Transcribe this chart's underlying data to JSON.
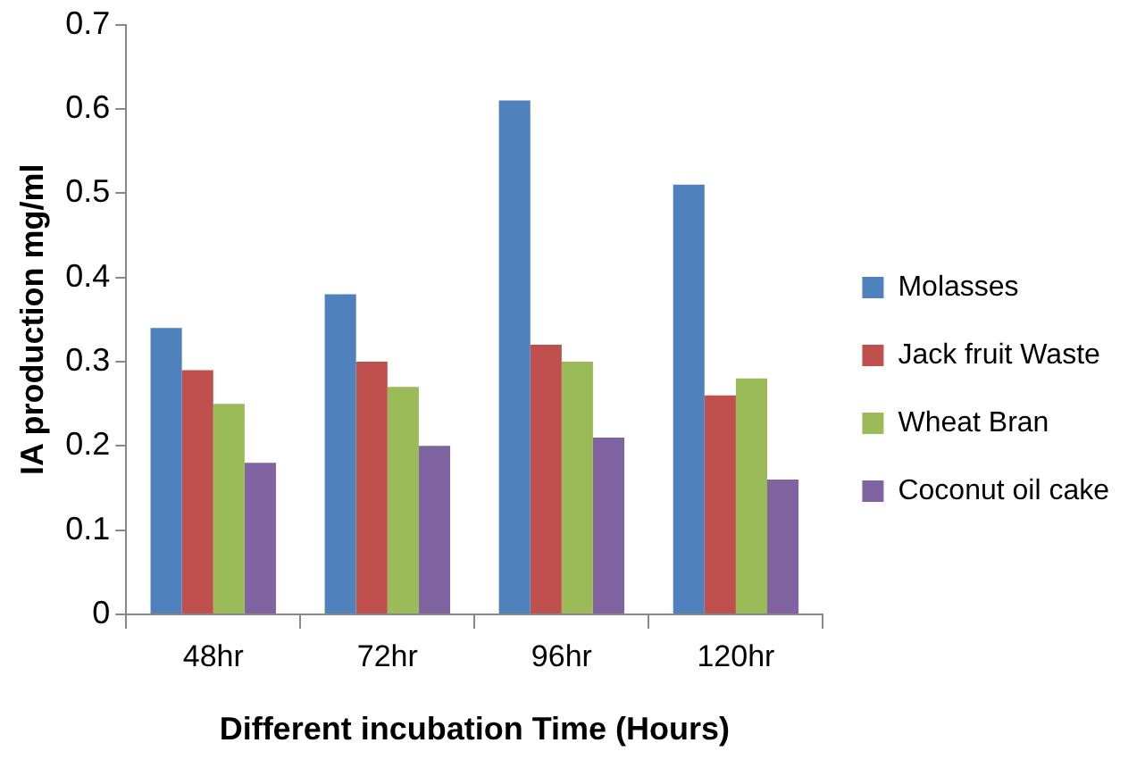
{
  "chart_data": {
    "type": "bar",
    "xlabel": "Different incubation Time (Hours)",
    "ylabel": "IA production mg/ml",
    "categories": [
      "48hr",
      "72hr",
      "96hr",
      "120hr"
    ],
    "series": [
      {
        "name": "Molasses",
        "color": "#4f81bd",
        "values": [
          0.34,
          0.38,
          0.61,
          0.51
        ]
      },
      {
        "name": "Jack fruit Waste",
        "color": "#c0504d",
        "values": [
          0.29,
          0.3,
          0.32,
          0.26
        ]
      },
      {
        "name": "Wheat Bran",
        "color": "#9bbb59",
        "values": [
          0.25,
          0.27,
          0.3,
          0.28
        ]
      },
      {
        "name": "Coconut oil cake",
        "color": "#8064a2",
        "values": [
          0.18,
          0.2,
          0.21,
          0.16
        ]
      }
    ],
    "ylim": [
      0,
      0.7
    ],
    "yticks": [
      0,
      0.1,
      0.2,
      0.3,
      0.4,
      0.5,
      0.6,
      0.7
    ],
    "grid": false,
    "legend": "right"
  }
}
